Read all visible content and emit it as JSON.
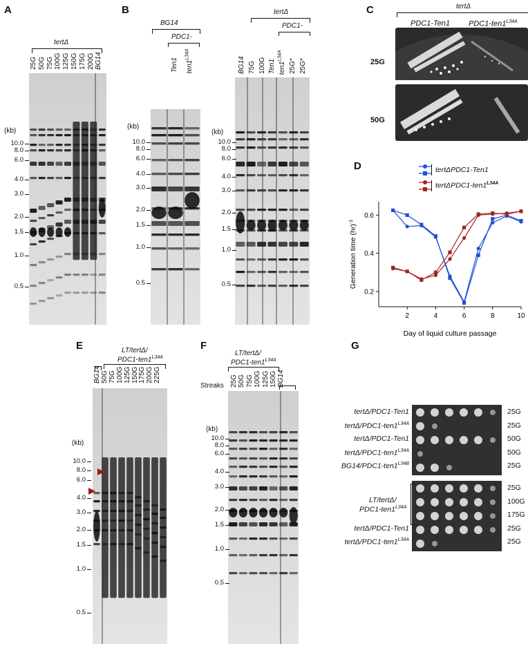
{
  "panels": {
    "A": {
      "letter": "A",
      "group": "tertΔ",
      "lanes": [
        "25G",
        "50G",
        "75G",
        "100G",
        "125G",
        "150G",
        "175G",
        "200G",
        "BG14"
      ],
      "kb_unit": "(kb)",
      "kb_marks": [
        "10.0",
        "8.0",
        "6.0",
        "4.0",
        "3.0",
        "2.0",
        "1.5",
        "1.0",
        "0.5"
      ]
    },
    "B": {
      "letter": "B",
      "left_group": "BG14",
      "left_sub": "PDC1-",
      "left_lanes": [
        "Ten1",
        "ten1L34A"
      ],
      "right_group": "tertΔ",
      "right_sub": "PDC1-",
      "right_lanes": [
        "BG14",
        "75G",
        "100G",
        "Ten1",
        "ten1L34A",
        "25G*",
        "25G*"
      ],
      "kb_unit": "(kb)",
      "kb_marks": [
        "10.0",
        "8.0",
        "6.0",
        "4.0",
        "3.0",
        "2.0",
        "1.5",
        "1.0",
        "0.5"
      ]
    },
    "C": {
      "letter": "C",
      "group": "tertΔ",
      "col1": "PDC1-Ten1",
      "col2_base": "PDC1-ten1",
      "col2_sup": "L34A",
      "rows": [
        "25G",
        "50G"
      ]
    },
    "D": {
      "letter": "D",
      "legend1": "tertΔPDC1-Ten1",
      "legend2_base": "tertΔPDC1-ten1",
      "legend2_sup": "L34A"
    },
    "E": {
      "letter": "E",
      "group_line1": "LT/tertΔ/",
      "group_line2_base": "PDC1-ten1",
      "group_line2_sup": "L34A",
      "lanes": [
        "BG14",
        "50G",
        "75G",
        "100G",
        "125G",
        "150G",
        "175G",
        "200G",
        "225G"
      ],
      "kb_unit": "(kb)",
      "kb_marks": [
        "10.0",
        "8.0",
        "6.0",
        "4.0",
        "3.0",
        "2.0",
        "1.5",
        "1.0",
        "0.5"
      ]
    },
    "F": {
      "letter": "F",
      "group_line1": "LT/tertΔ/",
      "group_line2_base": "PDC1-ten1",
      "group_line2_sup": "L34A",
      "streaks": "Streaks",
      "lanes": [
        "25G",
        "50G",
        "75G",
        "100G",
        "125G",
        "150G",
        "BG14"
      ],
      "kb_unit": "(kb)",
      "kb_marks": [
        "10.0",
        "8.0",
        "6.0",
        "4.0",
        "3.0",
        "2.0",
        "1.5",
        "1.0",
        "0.5"
      ]
    },
    "G": {
      "letter": "G",
      "top_rows": [
        {
          "label": "tertΔ/PDC1-Ten1",
          "sup": "",
          "gen": "25G"
        },
        {
          "label": "tertΔ/PDC1-ten1",
          "sup": "L34A",
          "gen": "25G"
        },
        {
          "label": "tertΔ/PDC1-Ten1",
          "sup": "",
          "gen": "50G"
        },
        {
          "label": "tertΔ/PDC1-ten1",
          "sup": "L34A",
          "gen": "50G"
        },
        {
          "label": "BG14/PDC1-ten1",
          "sup": "L34B",
          "gen": "25G"
        }
      ],
      "bracket_line1": "LT/tertΔ/",
      "bracket_line2_base": "PDC1-ten1",
      "bracket_line2_sup": "L34A",
      "bottom_rows": [
        {
          "label": "",
          "sup": "",
          "gen": "25G"
        },
        {
          "label": "",
          "sup": "",
          "gen": "100G"
        },
        {
          "label": "",
          "sup": "",
          "gen": "175G"
        },
        {
          "label": "tertΔ/PDC1-Ten1",
          "sup": "",
          "gen": "25G"
        },
        {
          "label": "tertΔ/PDC1-ten1",
          "sup": "L34A",
          "gen": "25G"
        }
      ]
    }
  },
  "chart_data": {
    "type": "line",
    "xlabel": "Day of liquid culture passage",
    "ylabel": "Generation time (hr)",
    "ylabel_sup": "-1",
    "xlim": [
      0,
      10
    ],
    "ylim": [
      0.12,
      0.67
    ],
    "xticks": [
      "2",
      "4",
      "6",
      "8",
      "10"
    ],
    "yticks": [
      "0.2",
      "0.4",
      "0.6"
    ],
    "colors": {
      "ten1": "#1f4fd8",
      "ten1_l34a": "#a32222"
    },
    "series": [
      {
        "key": "a",
        "color": "#1f4fd8",
        "marker": "circle",
        "x": [
          1,
          2,
          3,
          4,
          5,
          6,
          7,
          8,
          9,
          10
        ],
        "y": [
          0.625,
          0.54,
          0.545,
          0.485,
          0.28,
          0.145,
          0.425,
          0.56,
          0.595,
          0.565
        ]
      },
      {
        "key": "b",
        "color": "#1f4fd8",
        "marker": "square",
        "x": [
          1,
          2,
          3,
          4,
          5,
          6,
          7,
          8,
          9,
          10
        ],
        "y": [
          0.625,
          0.6,
          0.55,
          0.49,
          0.27,
          0.14,
          0.39,
          0.58,
          0.6,
          0.57
        ]
      },
      {
        "key": "c",
        "color": "#a32222",
        "marker": "circle",
        "x": [
          1,
          2,
          3,
          4,
          5,
          6,
          7,
          8,
          9,
          10
        ],
        "y": [
          0.32,
          0.305,
          0.265,
          0.285,
          0.37,
          0.48,
          0.6,
          0.605,
          0.61,
          0.62
        ]
      },
      {
        "key": "d",
        "color": "#a32222",
        "marker": "square",
        "x": [
          1,
          2,
          3,
          4,
          5,
          6,
          7,
          8,
          9,
          10
        ],
        "y": [
          0.325,
          0.305,
          0.26,
          0.3,
          0.405,
          0.535,
          0.605,
          0.61,
          0.605,
          0.62
        ]
      }
    ]
  }
}
